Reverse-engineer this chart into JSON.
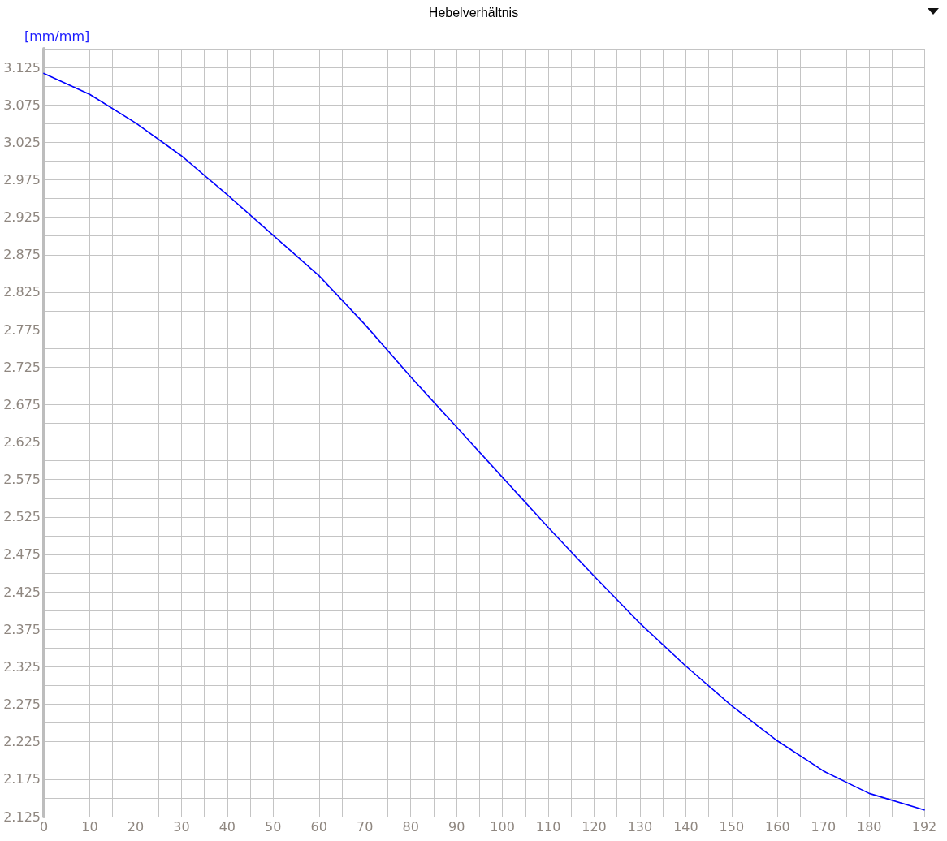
{
  "chart_data": {
    "type": "line",
    "title": "Hebelverhältnis",
    "ylabel": "[mm/mm]",
    "x": [
      0,
      10,
      20,
      30,
      40,
      50,
      60,
      70,
      80,
      90,
      100,
      110,
      120,
      130,
      140,
      150,
      160,
      170,
      180,
      192
    ],
    "series": [
      {
        "color": "#0000ff",
        "values": [
          3.117,
          3.089,
          3.051,
          3.007,
          2.955,
          2.901,
          2.847,
          2.782,
          2.712,
          2.645,
          2.578,
          2.511,
          2.446,
          2.383,
          2.326,
          2.273,
          2.226,
          2.186,
          2.156,
          2.134
        ]
      }
    ],
    "xlim": [
      0,
      192
    ],
    "xticks": [
      0,
      {
        "value": 5,
        "label": null
      },
      10,
      {
        "value": 15,
        "label": null
      },
      20,
      {
        "value": 25,
        "label": null
      },
      30,
      {
        "value": 35,
        "label": null
      },
      40,
      {
        "value": 45,
        "label": null
      },
      50,
      {
        "value": 55,
        "label": null
      },
      60,
      {
        "value": 65,
        "label": null
      },
      70,
      {
        "value": 75,
        "label": null
      },
      80,
      {
        "value": 85,
        "label": null
      },
      90,
      {
        "value": 95,
        "label": null
      },
      100,
      {
        "value": 105,
        "label": null
      },
      110,
      {
        "value": 115,
        "label": null
      },
      120,
      {
        "value": 125,
        "label": null
      },
      130,
      {
        "value": 135,
        "label": null
      },
      140,
      {
        "value": 145,
        "label": null
      },
      150,
      {
        "value": 155,
        "label": null
      },
      160,
      {
        "value": 165,
        "label": null
      },
      170,
      {
        "value": 175,
        "label": null
      },
      180,
      {
        "value": 185,
        "label": null
      },
      {
        "value": 190,
        "label": null
      },
      192
    ],
    "ylim": [
      2.125,
      3.15
    ],
    "yticks": [
      2.125,
      {
        "value": 2.15,
        "label": null
      },
      2.175,
      {
        "value": 2.2,
        "label": null
      },
      2.225,
      {
        "value": 2.25,
        "label": null
      },
      2.275,
      {
        "value": 2.3,
        "label": null
      },
      2.325,
      {
        "value": 2.35,
        "label": null
      },
      2.375,
      {
        "value": 2.4,
        "label": null
      },
      2.425,
      {
        "value": 2.45,
        "label": null
      },
      2.475,
      {
        "value": 2.5,
        "label": null
      },
      2.525,
      {
        "value": 2.55,
        "label": null
      },
      2.575,
      {
        "value": 2.6,
        "label": null
      },
      2.625,
      {
        "value": 2.65,
        "label": null
      },
      2.675,
      {
        "value": 2.7,
        "label": null
      },
      2.725,
      {
        "value": 2.75,
        "label": null
      },
      2.775,
      {
        "value": 2.8,
        "label": null
      },
      2.825,
      {
        "value": 2.85,
        "label": null
      },
      2.875,
      {
        "value": 2.9,
        "label": null
      },
      2.925,
      {
        "value": 2.95,
        "label": null
      },
      2.975,
      {
        "value": 3.0,
        "label": null
      },
      3.025,
      {
        "value": 3.05,
        "label": null
      },
      3.075,
      {
        "value": 3.1,
        "label": null
      },
      3.125,
      {
        "value": 3.15,
        "label": null
      }
    ],
    "grid": true,
    "marker": "none",
    "line_style": "solid"
  }
}
